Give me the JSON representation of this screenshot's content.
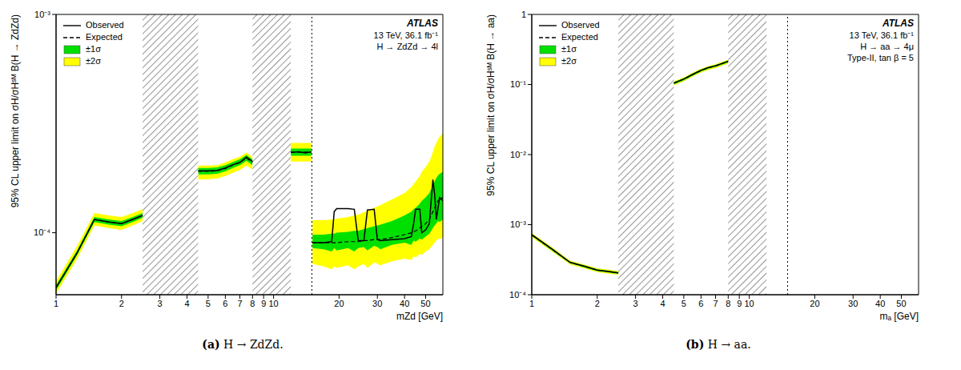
{
  "chart_data": [
    {
      "type": "line",
      "panel": "(a)",
      "title": "H → ZdZd.",
      "x_label": "mZd [GeV]",
      "y_label": "95% CL upper limit on σH/σHˢᴹ B(H → ZdZd)",
      "annotations": [
        "ATLAS",
        "13 TeV, 36.1 fb⁻¹",
        "H → ZdZd → 4l"
      ],
      "log": true,
      "legend": "top-left",
      "xlim": [
        1,
        60
      ],
      "xticks": [
        1,
        2,
        3,
        4,
        5,
        6,
        7,
        8,
        9,
        10,
        20,
        30,
        40,
        50
      ],
      "ylim": [
        5.2e-05,
        0.001
      ],
      "yticks": [
        {
          "value": 0.0001,
          "label": "10⁻⁴"
        },
        {
          "value": 0.001,
          "label": "10⁻³"
        }
      ],
      "excluded_ranges": [
        [
          2.5,
          4.5
        ],
        [
          8,
          12
        ]
      ],
      "divider_x": 15,
      "x": [
        1,
        1.25,
        1.5,
        1.75,
        2,
        2.25,
        2.5,
        3.5,
        4.5,
        5,
        5.5,
        6,
        6.5,
        7,
        7.5,
        8,
        10,
        12,
        13,
        14,
        14.9,
        15,
        15.1,
        17,
        18.5,
        19,
        19.5,
        22,
        23.5,
        24.5,
        26,
        27,
        29,
        30,
        31,
        35,
        40,
        43,
        44,
        45,
        47,
        48,
        50,
        52,
        53,
        54,
        55,
        56,
        57,
        58,
        60
      ],
      "series": [
        {
          "name": "Observed",
          "color": "#000000",
          "line_style": "solid",
          "values": [
            5.6e-05,
            8.1e-05,
            0.000115,
            0.000112,
            0.00011,
            0.000115,
            0.00012,
            null,
            0.000192,
            0.000192,
            0.000193,
            0.000198,
            0.000205,
            0.00021,
            0.000222,
            0.000212,
            null,
            0.000233,
            0.000235,
            0.000232,
            0.000235,
            null,
            9e-05,
            9e-05,
            9.1e-05,
            0.000125,
            0.000129,
            0.000129,
            0.000128,
            9.2e-05,
            9.2e-05,
            0.000127,
            0.000128,
            9.3e-05,
            9.2e-05,
            9.3e-05,
            9.4e-05,
            9.6e-05,
            0.00011,
            0.000128,
            0.000128,
            0.0001,
            0.000103,
            0.00011,
            0.00014,
            0.000175,
            0.00015,
            0.000115,
            0.00013,
            0.000145,
            0.00014
          ]
        },
        {
          "name": "Expected",
          "color": "#000000",
          "line_style": "dashed",
          "values": [
            5.6e-05,
            8.1e-05,
            0.000115,
            0.000112,
            0.00011,
            0.000115,
            0.00012,
            null,
            0.000191,
            0.000191,
            0.000192,
            0.000197,
            0.000204,
            0.00021,
            0.00022,
            0.00021,
            null,
            0.000234,
            0.000234,
            0.000234,
            0.000234,
            null,
            9e-05,
            9e-05,
            9e-05,
            9e-05,
            9e-05,
            9.1e-05,
            9.1e-05,
            9.1e-05,
            9.2e-05,
            9.2e-05,
            9.3e-05,
            9.3e-05,
            9.3e-05,
            9.5e-05,
            9.8e-05,
            0.0001,
            0.000101,
            0.000102,
            0.000105,
            0.000107,
            0.00011,
            0.000115,
            0.00012,
            0.000125,
            0.00013,
            0.000135,
            0.00014,
            0.000142,
            0.000145
          ]
        },
        {
          "name": "±1σ",
          "color": "#00e000",
          "type": "band",
          "lower": [
            5.45e-05,
            7.9e-05,
            0.000112,
            0.000109,
            0.000107,
            0.000112,
            0.000117,
            null,
            0.000185,
            0.000185,
            0.000186,
            0.000191,
            0.000198,
            0.000204,
            0.000213,
            0.000204,
            null,
            0.000225,
            0.000225,
            0.000225,
            0.000225,
            null,
            8.5e-05,
            8.4e-05,
            8.2e-05,
            8.5e-05,
            8.3e-05,
            8.5e-05,
            8.2e-05,
            8.5e-05,
            8.6e-05,
            8.3e-05,
            8.7e-05,
            8.6e-05,
            8.4e-05,
            8.8e-05,
            9e-05,
            8.8e-05,
            9.2e-05,
            9.1e-05,
            9.4e-05,
            9.3e-05,
            9.6e-05,
            9.9e-05,
            0.000102,
            0.000105,
            0.000108,
            0.00011,
            0.000113,
            0.000112,
            0.000115
          ],
          "upper": [
            5.75e-05,
            8.3e-05,
            0.000118,
            0.000115,
            0.000113,
            0.000118,
            0.000123,
            null,
            0.000198,
            0.000198,
            0.000199,
            0.000204,
            0.000211,
            0.000217,
            0.000227,
            0.000217,
            null,
            0.000243,
            0.000243,
            0.000243,
            0.000243,
            null,
            9.8e-05,
            9.8e-05,
            9.9e-05,
            9.9e-05,
            0.0001,
            0.000101,
            0.000102,
            0.000102,
            0.000104,
            0.000105,
            0.000107,
            0.000108,
            0.000109,
            0.000113,
            0.00012,
            0.000125,
            0.000128,
            0.00013,
            0.000136,
            0.00014,
            0.000145,
            0.000152,
            0.000158,
            0.000165,
            0.000172,
            0.000178,
            0.000183,
            0.000186,
            0.00019
          ]
        },
        {
          "name": "±2σ",
          "color": "#ffff00",
          "type": "band",
          "lower": [
            5.25e-05,
            7.6e-05,
            0.000108,
            0.000105,
            0.000103,
            0.000108,
            0.000113,
            null,
            0.000175,
            0.000176,
            0.000177,
            0.000182,
            0.000188,
            0.000194,
            0.000203,
            0.000195,
            null,
            0.000212,
            0.000212,
            0.000212,
            0.000212,
            null,
            7.2e-05,
            7e-05,
            6.8e-05,
            7e-05,
            6.9e-05,
            7.1e-05,
            6.8e-05,
            7e-05,
            7.2e-05,
            6.9e-05,
            7.3e-05,
            7.2e-05,
            7.1e-05,
            7.4e-05,
            7.6e-05,
            7.5e-05,
            7.8e-05,
            7.7e-05,
            8e-05,
            7.9e-05,
            8.2e-05,
            8.4e-05,
            8.6e-05,
            8.8e-05,
            9e-05,
            9.2e-05,
            9.4e-05,
            9.3e-05,
            9.6e-05
          ],
          "upper": [
            6e-05,
            8.7e-05,
            0.000123,
            0.00012,
            0.000118,
            0.000123,
            0.000128,
            null,
            0.000203,
            0.000203,
            0.000204,
            0.00021,
            0.000217,
            0.000223,
            0.000233,
            0.000223,
            null,
            0.000258,
            0.000258,
            0.000258,
            0.000258,
            null,
            0.000114,
            0.000114,
            0.000115,
            0.000115,
            0.000116,
            0.000118,
            0.00012,
            0.000121,
            0.000124,
            0.000126,
            0.00013,
            0.000132,
            0.000134,
            0.000142,
            0.000152,
            0.000162,
            0.000167,
            0.000172,
            0.000182,
            0.00019,
            0.0002,
            0.000212,
            0.000222,
            0.000235,
            0.000248,
            0.000258,
            0.000268,
            0.000275,
            0.000285
          ]
        }
      ]
    },
    {
      "type": "line",
      "panel": "(b)",
      "title": "H → aa.",
      "x_label": "mₐ [GeV]",
      "y_label": "95% CL upper limit on σH/σHˢᴹ B(H → aa)",
      "annotations": [
        "ATLAS",
        "13 TeV, 36.1 fb⁻¹",
        "H → aa → 4μ",
        "Type-II, tan β = 5"
      ],
      "log": true,
      "legend": "top-left",
      "xlim": [
        1,
        60
      ],
      "xticks": [
        1,
        2,
        3,
        4,
        5,
        6,
        7,
        8,
        9,
        10,
        20,
        30,
        40,
        50
      ],
      "ylim": [
        0.0001,
        1
      ],
      "yticks": [
        {
          "value": 0.0001,
          "label": "10⁻⁴"
        },
        {
          "value": 0.001,
          "label": "10⁻³"
        },
        {
          "value": 0.01,
          "label": "10⁻²"
        },
        {
          "value": 0.1,
          "label": "10⁻¹"
        },
        1
      ],
      "excluded_ranges": [
        [
          2.5,
          4.5
        ],
        [
          8,
          12
        ]
      ],
      "divider_x": 15,
      "x": [
        1,
        1.25,
        1.5,
        1.75,
        2,
        2.25,
        2.5,
        3.5,
        4.5,
        5,
        5.5,
        6,
        6.5,
        7,
        7.5,
        8
      ],
      "series": [
        {
          "name": "Observed",
          "color": "#000000",
          "line_style": "solid",
          "values": [
            0.00072,
            0.00044,
            0.00029,
            0.000255,
            0.000225,
            0.000215,
            0.000205,
            null,
            0.105,
            0.12,
            0.14,
            0.16,
            0.175,
            0.185,
            0.2,
            0.215
          ]
        },
        {
          "name": "Expected",
          "color": "#000000",
          "line_style": "dashed",
          "values": [
            0.00071,
            0.000435,
            0.000288,
            0.000253,
            0.000224,
            0.000214,
            0.000204,
            null,
            0.104,
            0.119,
            0.139,
            0.158,
            0.173,
            0.184,
            0.198,
            0.213
          ]
        },
        {
          "name": "±1σ",
          "color": "#00e000",
          "type": "band",
          "lower": [
            0.00069,
            0.00042,
            0.00028,
            0.000245,
            0.000217,
            0.000207,
            0.000198,
            null,
            0.1,
            0.115,
            0.134,
            0.153,
            0.168,
            0.178,
            0.192,
            0.206
          ],
          "upper": [
            0.000735,
            0.00045,
            0.000297,
            0.000261,
            0.000231,
            0.000221,
            0.00021,
            null,
            0.108,
            0.123,
            0.144,
            0.163,
            0.178,
            0.19,
            0.204,
            0.22
          ]
        },
        {
          "name": "±2σ",
          "color": "#ffff00",
          "type": "band",
          "lower": [
            0.00066,
            0.000405,
            0.00027,
            0.000237,
            0.00021,
            0.0002,
            0.000192,
            null,
            0.097,
            0.111,
            0.13,
            0.148,
            0.162,
            0.172,
            0.186,
            0.2
          ],
          "upper": [
            0.00076,
            0.000465,
            0.000306,
            0.000269,
            0.000238,
            0.000228,
            0.000217,
            null,
            0.111,
            0.127,
            0.148,
            0.168,
            0.183,
            0.195,
            0.21,
            0.226
          ]
        }
      ]
    }
  ]
}
